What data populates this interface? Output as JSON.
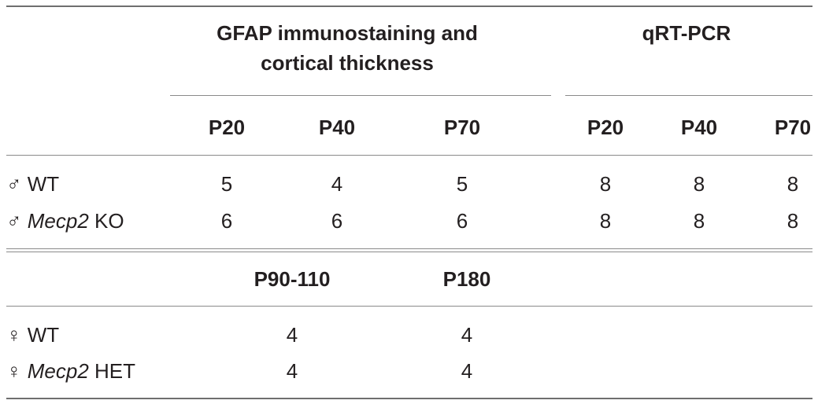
{
  "header": {
    "group1_line1": "GFAP immunostaining and",
    "group1_line2": "cortical thickness",
    "group2": "qRT-PCR",
    "cols": [
      "P20",
      "P40",
      "P70",
      "P20",
      "P40",
      "P70"
    ]
  },
  "rows_male": [
    {
      "symbol": "♂",
      "gene": "",
      "label": "WT",
      "values": [
        "5",
        "4",
        "5",
        "8",
        "8",
        "8"
      ]
    },
    {
      "symbol": "♂",
      "gene": "Mecp2",
      "label": "KO",
      "values": [
        "6",
        "6",
        "6",
        "8",
        "8",
        "8"
      ]
    }
  ],
  "header2": {
    "cols": [
      "P90-110",
      "P180"
    ]
  },
  "rows_female": [
    {
      "symbol": "♀",
      "gene": "",
      "label": "WT",
      "values": [
        "4",
        "4"
      ]
    },
    {
      "symbol": "♀",
      "gene": "Mecp2",
      "label": "HET",
      "values": [
        "4",
        "4"
      ]
    }
  ]
}
